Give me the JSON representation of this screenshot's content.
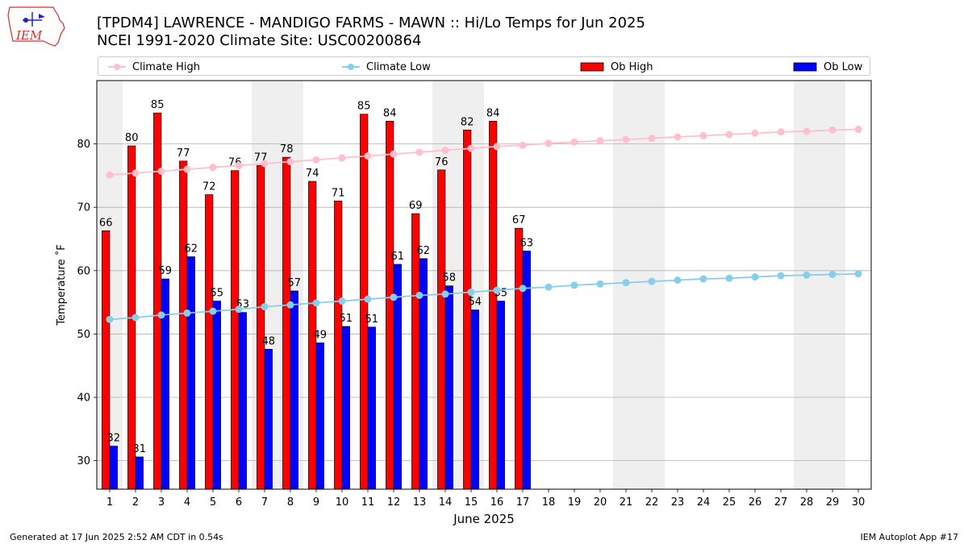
{
  "header": {
    "title_line1": "[TPDM4] LAWRENCE  - MANDIGO FARMS - MAWN :: Hi/Lo Temps for Jun 2025",
    "title_line2": "NCEI 1991-2020 Climate Site: USC00200864",
    "logo_text": "IEM"
  },
  "footer": {
    "left": "Generated at 17 Jun 2025 2:52 AM CDT in 0.54s",
    "right": "IEM Autoplot App #17"
  },
  "colors": {
    "ob_high": "#ff0000",
    "ob_low": "#0000ff",
    "climate_high": "#ffc0cb",
    "climate_low": "#87ceeb",
    "weekend_band": "#efefef",
    "grid": "#b0b0b0"
  },
  "chart_data": {
    "type": "bar",
    "title": "[TPDM4] LAWRENCE  - MANDIGO FARMS - MAWN :: Hi/Lo Temps for Jun 2025",
    "xlabel": "June 2025",
    "ylabel": "Temperature ˚F",
    "xlim": [
      0.5,
      30.5
    ],
    "ylim": [
      25.5,
      90
    ],
    "yticks": [
      30,
      40,
      50,
      60,
      70,
      80
    ],
    "grid": "horizontal",
    "legend_position": "top",
    "days": [
      1,
      2,
      3,
      4,
      5,
      6,
      7,
      8,
      9,
      10,
      11,
      12,
      13,
      14,
      15,
      16,
      17,
      18,
      19,
      20,
      21,
      22,
      23,
      24,
      25,
      26,
      27,
      28,
      29,
      30
    ],
    "weekend_bands": [
      [
        1,
        1
      ],
      [
        7,
        8
      ],
      [
        14,
        15
      ],
      [
        21,
        22
      ],
      [
        28,
        29
      ]
    ],
    "series": [
      {
        "name": "Climate High",
        "kind": "line",
        "values": [
          75.1,
          75.4,
          75.7,
          76.0,
          76.3,
          76.6,
          76.9,
          77.2,
          77.5,
          77.8,
          78.1,
          78.4,
          78.7,
          79.0,
          79.3,
          79.6,
          79.8,
          80.1,
          80.3,
          80.5,
          80.7,
          80.9,
          81.1,
          81.3,
          81.5,
          81.7,
          81.9,
          82.0,
          82.2,
          82.3
        ]
      },
      {
        "name": "Climate Low",
        "kind": "line",
        "values": [
          52.3,
          52.6,
          53.0,
          53.3,
          53.6,
          53.9,
          54.3,
          54.6,
          54.9,
          55.2,
          55.5,
          55.8,
          56.1,
          56.3,
          56.6,
          56.9,
          57.2,
          57.4,
          57.7,
          57.9,
          58.1,
          58.3,
          58.5,
          58.7,
          58.8,
          59.0,
          59.2,
          59.3,
          59.4,
          59.5
        ]
      },
      {
        "name": "Ob High",
        "kind": "bar",
        "values": [
          66.3,
          79.7,
          84.9,
          77.3,
          72.0,
          75.8,
          76.6,
          77.9,
          74.1,
          71.0,
          84.7,
          83.6,
          69.0,
          75.9,
          82.2,
          83.6,
          66.7
        ],
        "labels": [
          "66",
          "80",
          "85",
          "77",
          "72",
          "76",
          "77",
          "78",
          "74",
          "71",
          "85",
          "84",
          "69",
          "76",
          "82",
          "84",
          "67"
        ]
      },
      {
        "name": "Ob Low",
        "kind": "bar",
        "values": [
          32.3,
          30.6,
          58.7,
          62.2,
          55.2,
          53.4,
          47.6,
          56.8,
          48.6,
          51.2,
          51.1,
          61.0,
          61.9,
          57.6,
          53.8,
          55.2,
          63.1
        ],
        "labels": [
          "32",
          "31",
          "59",
          "62",
          "55",
          "53",
          "48",
          "57",
          "49",
          "51",
          "51",
          "61",
          "62",
          "58",
          "54",
          "55",
          "63"
        ]
      }
    ]
  }
}
